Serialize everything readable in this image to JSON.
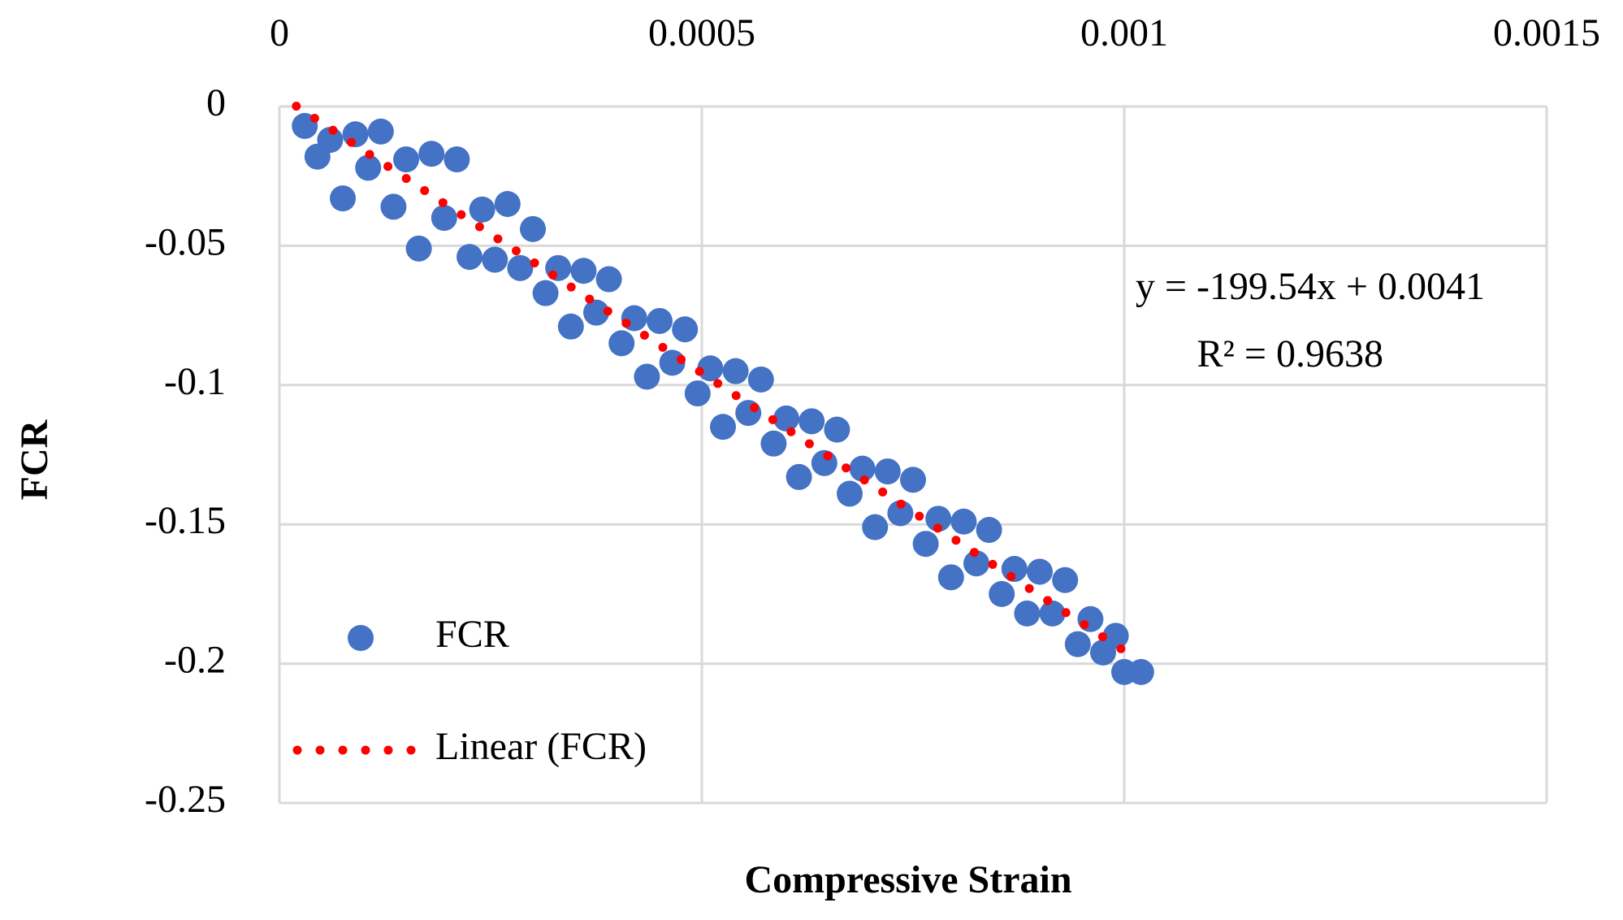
{
  "chart_data": {
    "type": "scatter",
    "x_label": "Compressive Strain",
    "y_label": "FCR",
    "xlim": [
      0,
      0.0015
    ],
    "xticks": [
      0,
      0.0005,
      0.001,
      0.0015
    ],
    "ylim": [
      -0.25,
      0
    ],
    "yticks": [
      -0.25,
      -0.2,
      -0.15,
      -0.1,
      -0.05,
      0
    ],
    "grid": true,
    "legend": "lower-left",
    "series": [
      {
        "name": "FCR",
        "color": "#4472c4",
        "x": [
          3e-05,
          4.5e-05,
          6e-05,
          7.5e-05,
          9e-05,
          0.000105,
          0.00012,
          0.000135,
          0.00015,
          0.000165,
          0.00018,
          0.000195,
          0.00021,
          0.000225,
          0.00024,
          0.000255,
          0.00027,
          0.000285,
          0.0003,
          0.000315,
          0.00033,
          0.000345,
          0.00036,
          0.000375,
          0.00039,
          0.000405,
          0.00042,
          0.000435,
          0.00045,
          0.000465,
          0.00048,
          0.000495,
          0.00051,
          0.000525,
          0.00054,
          0.000555,
          0.00057,
          0.000585,
          0.0006,
          0.000615,
          0.00063,
          0.000645,
          0.00066,
          0.000675,
          0.00069,
          0.000705,
          0.00072,
          0.000735,
          0.00075,
          0.000765,
          0.00078,
          0.000795,
          0.00081,
          0.000825,
          0.00084,
          0.000855,
          0.00087,
          0.000885,
          0.0009,
          0.000915,
          0.00093,
          0.000945,
          0.00096,
          0.000975,
          0.00099,
          0.001,
          0.00102
        ],
        "values": [
          -0.007,
          -0.018,
          -0.012,
          -0.033,
          -0.01,
          -0.022,
          -0.009,
          -0.036,
          -0.019,
          -0.051,
          -0.017,
          -0.04,
          -0.019,
          -0.054,
          -0.037,
          -0.055,
          -0.035,
          -0.058,
          -0.044,
          -0.067,
          -0.058,
          -0.079,
          -0.059,
          -0.074,
          -0.062,
          -0.085,
          -0.076,
          -0.097,
          -0.077,
          -0.092,
          -0.08,
          -0.103,
          -0.094,
          -0.115,
          -0.095,
          -0.11,
          -0.098,
          -0.121,
          -0.112,
          -0.133,
          -0.113,
          -0.128,
          -0.116,
          -0.139,
          -0.13,
          -0.151,
          -0.131,
          -0.146,
          -0.134,
          -0.157,
          -0.148,
          -0.169,
          -0.149,
          -0.164,
          -0.152,
          -0.175,
          -0.166,
          -0.182,
          -0.167,
          -0.182,
          -0.17,
          -0.193,
          -0.184,
          -0.196,
          -0.19,
          -0.203,
          -0.203
        ]
      }
    ],
    "trendline": {
      "name": "Linear (FCR)",
      "color": "#ff0000",
      "slope": -199.54,
      "intercept": 0.0041,
      "x_range": [
        2e-05,
        0.001
      ],
      "equation": "y = -199.54x + 0.0041",
      "r_squared": "R² = 0.9638"
    }
  }
}
